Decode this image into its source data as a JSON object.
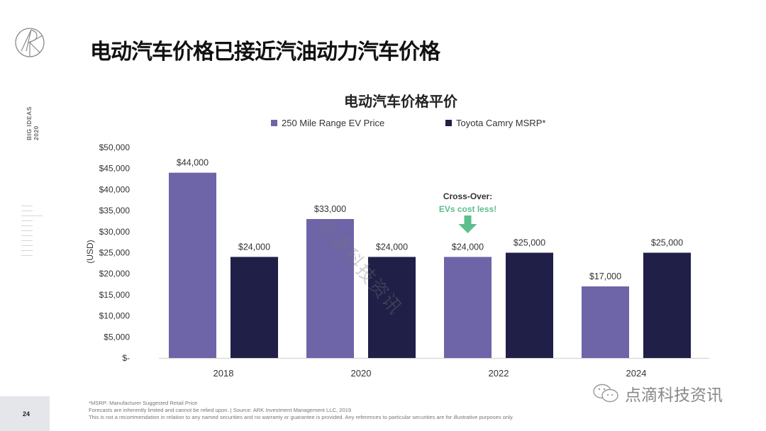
{
  "page": {
    "title": "电动汽车价格已接近汽油动力汽车价格",
    "side_label_line1": "BIG IDEAS",
    "side_label_line2": "2020",
    "page_number": "24",
    "logo_icon": "ark-logo-icon"
  },
  "footnotes": [
    "*MSRP: Manufacturer Suggested Retail Price",
    "Forecasts are inherently limited and cannot be relied upon.  |  Source: ARK Investment Management LLC, 2019",
    "This is not a recommendation in relation to any named securities and no warranty or guarantee is provided. Any references to particular securities are for illustrative purposes only."
  ],
  "watermark": {
    "brand_text": "点滴科技资讯",
    "brand_icon": "wechat-icon",
    "diagonal_text": "点滴科技资讯"
  },
  "colors": {
    "ev": "#6e64a8",
    "camry": "#1f1f47",
    "callout_green": "#5cbf8c",
    "axis": "#d9d9d9"
  },
  "chart_data": {
    "type": "bar",
    "title": "电动汽车价格平价",
    "categories": [
      "2018",
      "2020",
      "2022",
      "2024"
    ],
    "series": [
      {
        "name": "250 Mile Range EV Price",
        "values": [
          44000,
          33000,
          24000,
          17000
        ],
        "labels": [
          "$44,000",
          "$33,000",
          "$24,000",
          "$17,000"
        ]
      },
      {
        "name": "Toyota Camry MSRP*",
        "values": [
          24000,
          24000,
          25000,
          25000
        ],
        "labels": [
          "$24,000",
          "$24,000",
          "$25,000",
          "$25,000"
        ]
      }
    ],
    "ylabel": "(USD)",
    "xlabel": "",
    "ylim": [
      0,
      50000
    ],
    "yticks": [
      0,
      5000,
      10000,
      15000,
      20000,
      25000,
      30000,
      35000,
      40000,
      45000,
      50000
    ],
    "ytick_labels": [
      "$-",
      "$5,000",
      "$10,000",
      "$15,000",
      "$20,000",
      "$25,000",
      "$30,000",
      "$35,000",
      "$40,000",
      "$45,000",
      "$50,000"
    ],
    "grid": false,
    "legend": "top",
    "annotation": {
      "category": "2022",
      "line1": "Cross-Over:",
      "line2": "EVs cost less!",
      "arrow": "down-arrow-icon"
    }
  }
}
